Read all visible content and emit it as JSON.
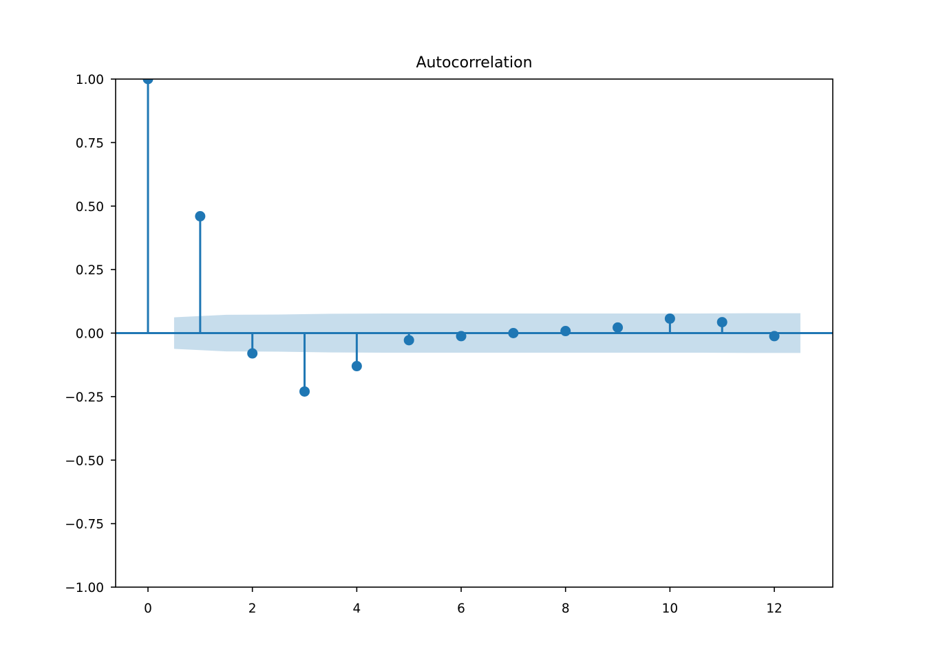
{
  "chart_data": {
    "type": "stem",
    "title": "Autocorrelation",
    "xlabel": "",
    "ylabel": "",
    "xlim": [
      -0.62,
      13.12
    ],
    "ylim": [
      -1.0,
      1.0
    ],
    "x_ticks": [
      0,
      2,
      4,
      6,
      8,
      10,
      12
    ],
    "x_tick_labels": [
      "0",
      "2",
      "4",
      "6",
      "8",
      "10",
      "12"
    ],
    "y_ticks": [
      1.0,
      0.75,
      0.5,
      0.25,
      0.0,
      -0.25,
      -0.5,
      -0.75,
      -1.0
    ],
    "y_tick_labels": [
      "1.00",
      "0.75",
      "0.50",
      "0.25",
      "0.00",
      "−0.25",
      "−0.50",
      "−0.75",
      "−1.00"
    ],
    "lags": [
      0,
      1,
      2,
      3,
      4,
      5,
      6,
      7,
      8,
      9,
      10,
      11,
      12
    ],
    "values": [
      1.0,
      0.46,
      -0.08,
      -0.23,
      -0.13,
      -0.028,
      -0.012,
      0.0,
      0.008,
      0.022,
      0.057,
      0.043,
      -0.012
    ],
    "confidence_band": {
      "x": [
        0.5,
        1.5,
        2.5,
        3.5,
        4.5,
        5.5,
        6.5,
        7.5,
        8.5,
        9.5,
        10.5,
        11.5,
        12.5
      ],
      "upper": [
        0.062,
        0.072,
        0.073,
        0.076,
        0.077,
        0.077,
        0.077,
        0.077,
        0.077,
        0.077,
        0.077,
        0.078,
        0.078
      ],
      "lower": [
        -0.062,
        -0.072,
        -0.073,
        -0.076,
        -0.077,
        -0.077,
        -0.077,
        -0.077,
        -0.077,
        -0.077,
        -0.077,
        -0.078,
        -0.078
      ]
    },
    "grid": false,
    "colors": {
      "stem": "#1f77b4",
      "band": "#1f77b4",
      "axes": "#000000"
    }
  }
}
